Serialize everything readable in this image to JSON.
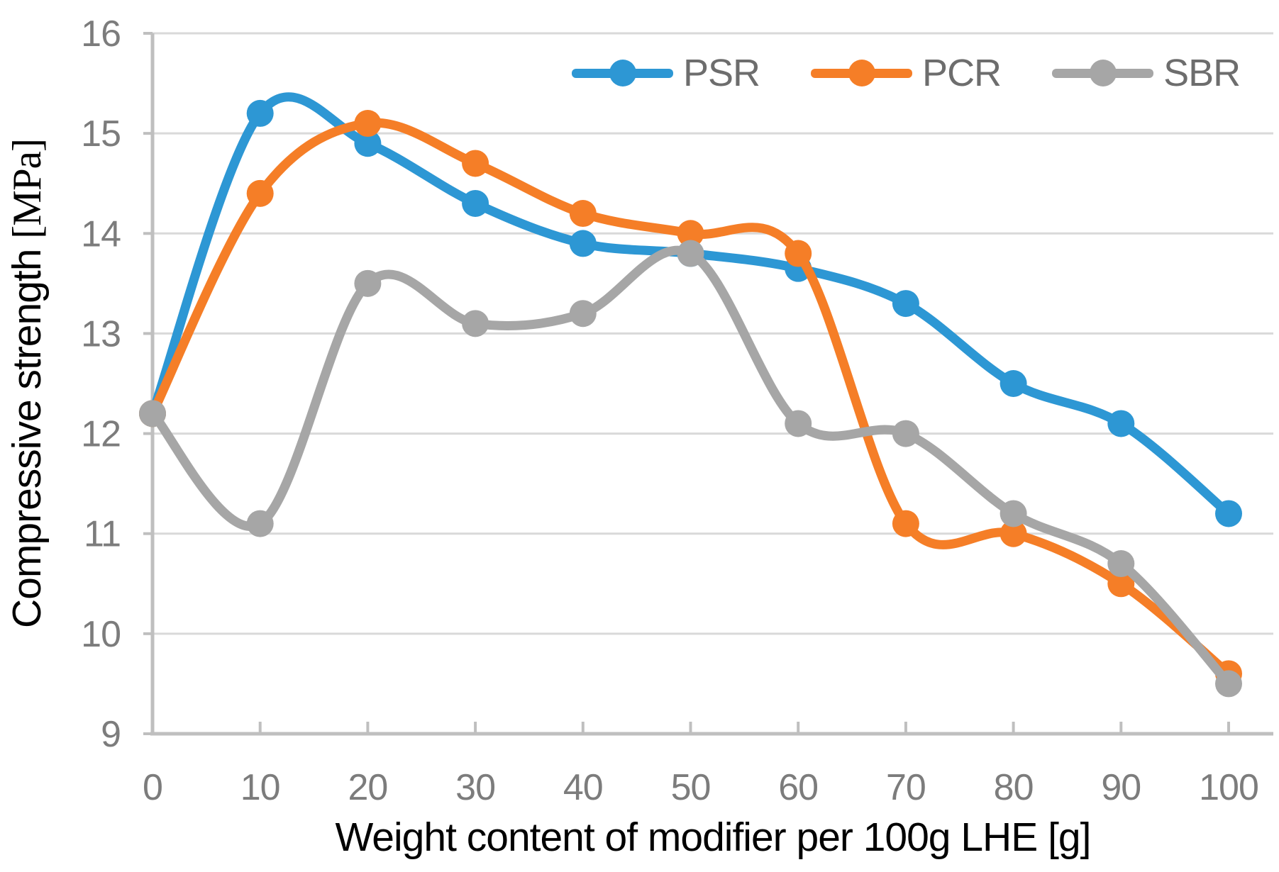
{
  "chart_data": {
    "type": "line",
    "title": "",
    "xlabel": "Weight content of modifier per 100g LHE [g]",
    "ylabel": "Compressive strength [MPa]",
    "ylabel_sans_part": "Compressive strength ",
    "ylabel_serif_part": "[MPa]",
    "x": [
      0,
      10,
      20,
      30,
      40,
      50,
      60,
      70,
      80,
      90,
      100
    ],
    "x_ticks": [
      0,
      10,
      20,
      30,
      40,
      50,
      60,
      70,
      80,
      90,
      100
    ],
    "y_ticks": [
      9,
      10,
      11,
      12,
      13,
      14,
      15,
      16
    ],
    "xlim": [
      0,
      100
    ],
    "ylim": [
      9,
      16
    ],
    "grid": "horizontal",
    "smooth": true,
    "legend_position": "top-center",
    "series": [
      {
        "name": "PSR",
        "color": "#2d97d4",
        "values": [
          12.2,
          15.2,
          14.9,
          14.3,
          13.9,
          13.8,
          13.65,
          13.3,
          12.5,
          12.1,
          11.2
        ]
      },
      {
        "name": "PCR",
        "color": "#f57e27",
        "values": [
          12.2,
          14.4,
          15.1,
          14.7,
          14.2,
          14.0,
          13.8,
          11.1,
          11.0,
          10.5,
          9.6
        ]
      },
      {
        "name": "SBR",
        "color": "#a6a6a6",
        "values": [
          12.2,
          11.1,
          13.5,
          13.1,
          13.2,
          13.8,
          12.1,
          12.0,
          11.2,
          10.7,
          9.5
        ]
      }
    ]
  },
  "colors": {
    "gridline": "#d9d9d9",
    "axis_line": "#bfbfbf",
    "tick_label": "#7c7c7c",
    "legend_text": "#6d6d6d",
    "axis_title": "#000000"
  }
}
